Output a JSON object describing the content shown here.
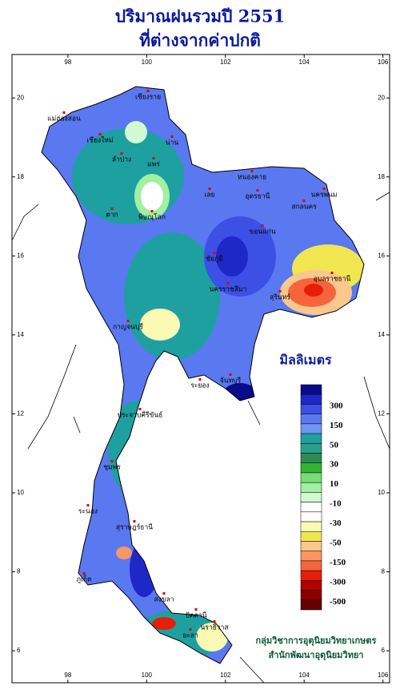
{
  "title": [
    "ปริมาณฝนรวมปี 2551",
    "ที่ต่างจากค่าปกติ"
  ],
  "map": {
    "xlim": [
      96.58,
      106.17
    ],
    "ylim": [
      5.19,
      21.1
    ],
    "xticks": [
      98,
      100,
      102,
      104,
      106
    ],
    "yticks": [
      20,
      18,
      16,
      14,
      12,
      10,
      8,
      6
    ]
  },
  "places": [
    "เชียงราย",
    "แม่ฮ่องสอน",
    "เชียงใหม่",
    "น่าน",
    "ลำปาง",
    "แพร่",
    "ตาก",
    "พิษณุโลก",
    "เลย",
    "หนองคาย",
    "อุดรธานี",
    "นครพนม",
    "สกลนคร",
    "ขอนแก่น",
    "ชัยภูมิ",
    "นครราชสีมา",
    "อุบลราชธานี",
    "สุรินทร์",
    "กาญจนบุรี",
    "ระยอง",
    "จันทบุรี",
    "ประจวบคีรีขันธ์",
    "ชุมพร",
    "ระนอง",
    "สุราษฎร์ธานี",
    "ภูเก็ต",
    "สงขลา",
    "ปัตตานี",
    "ยะลา",
    "นราธิวาส"
  ],
  "legend": {
    "title": "มิลลิเมตร",
    "labels": [
      300,
      150,
      50,
      30,
      10,
      -10,
      -30,
      -50,
      -150,
      -300,
      -500
    ],
    "colors": [
      "#0a0a8c",
      "#1e28c8",
      "#3c50e6",
      "#5a78f0",
      "#6e96f5",
      "#1ea0a0",
      "#28a08c",
      "#2e8b57",
      "#32b432",
      "#78dc78",
      "#a0f0a0",
      "#d2fad2",
      "#ffffff",
      "#ffffff",
      "#fafab4",
      "#f0e650",
      "#fac88c",
      "#fa9664",
      "#f5643c",
      "#e61e0a",
      "#b40000",
      "#8c0000",
      "#640000"
    ]
  },
  "credits": [
    "กลุ่มวิชาการอุตุนิยมวิทยาเกษตร",
    "สำนักพัฒนาอุตุนิยมวิทยา"
  ]
}
